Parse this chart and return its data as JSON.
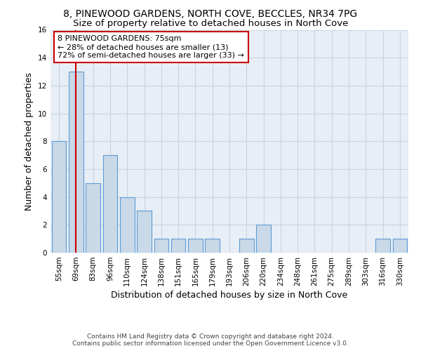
{
  "title1": "8, PINEWOOD GARDENS, NORTH COVE, BECCLES, NR34 7PG",
  "title2": "Size of property relative to detached houses in North Cove",
  "xlabel": "Distribution of detached houses by size in North Cove",
  "ylabel": "Number of detached properties",
  "categories": [
    "55sqm",
    "69sqm",
    "83sqm",
    "96sqm",
    "110sqm",
    "124sqm",
    "138sqm",
    "151sqm",
    "165sqm",
    "179sqm",
    "193sqm",
    "206sqm",
    "220sqm",
    "234sqm",
    "248sqm",
    "261sqm",
    "275sqm",
    "289sqm",
    "303sqm",
    "316sqm",
    "330sqm"
  ],
  "values": [
    8,
    13,
    5,
    7,
    4,
    3,
    1,
    1,
    1,
    1,
    0,
    1,
    2,
    0,
    0,
    0,
    0,
    0,
    0,
    1,
    1
  ],
  "bar_color": "#c9d9e8",
  "bar_edge_color": "#5b9bd5",
  "red_line_index": 1,
  "annotation_text": "8 PINEWOOD GARDENS: 75sqm\n← 28% of detached houses are smaller (13)\n72% of semi-detached houses are larger (33) →",
  "annotation_box_color": "#ffffff",
  "annotation_box_edge": "#cc0000",
  "red_line_color": "#cc0000",
  "ylim": [
    0,
    16
  ],
  "yticks": [
    0,
    2,
    4,
    6,
    8,
    10,
    12,
    14,
    16
  ],
  "grid_color": "#c8d4e3",
  "background_color": "#e8eef5",
  "footer1": "Contains HM Land Registry data © Crown copyright and database right 2024.",
  "footer2": "Contains public sector information licensed under the Open Government Licence v3.0.",
  "title1_fontsize": 10,
  "title2_fontsize": 9.5,
  "xlabel_fontsize": 9,
  "ylabel_fontsize": 9,
  "tick_fontsize": 7.5,
  "annotation_fontsize": 8,
  "footer_fontsize": 6.5
}
